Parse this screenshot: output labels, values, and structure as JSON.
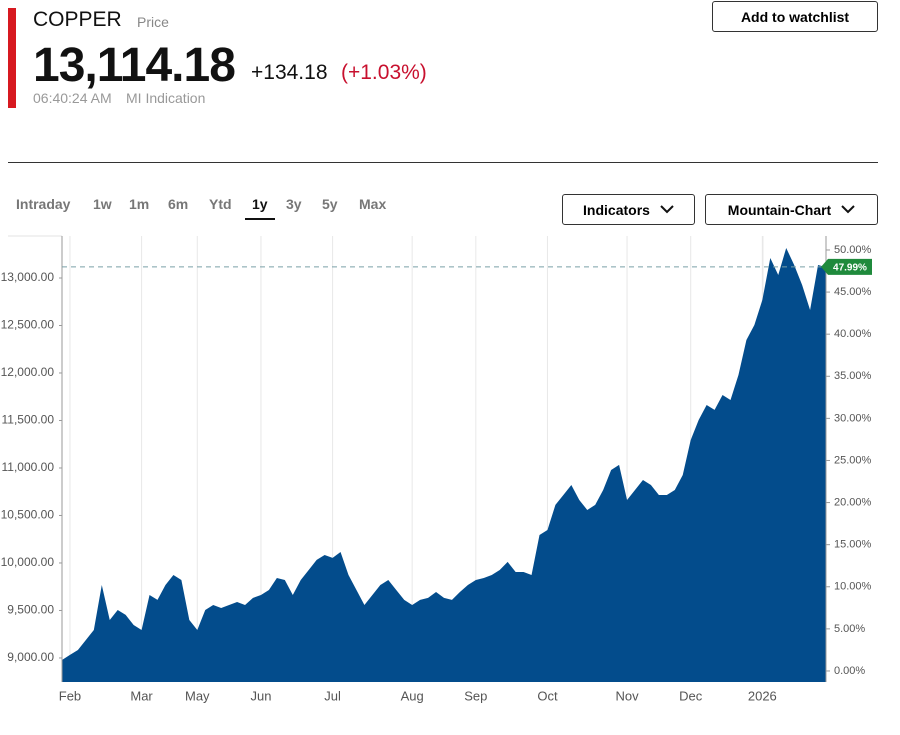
{
  "header": {
    "symbol": "COPPER",
    "kind": "Price",
    "price": "13,114.18",
    "change": "+134.18",
    "change_pct": "(+1.03%)",
    "time": "06:40:24 AM",
    "source": "MI Indication",
    "watchlist": "Add to watchlist",
    "tabs": [
      "Intraday",
      "1w",
      "1m",
      "6m",
      "Ytd",
      "1y",
      "3y",
      "5y",
      "Max"
    ],
    "indicators": "Indicators",
    "chart_style": "Mountain-Chart"
  },
  "chart_data": {
    "type": "area",
    "categories": [
      null,
      "Feb",
      null,
      null,
      null,
      null,
      null,
      null,
      null,
      null,
      "Mar",
      null,
      null,
      null,
      null,
      null,
      null,
      "May",
      null,
      null,
      null,
      null,
      null,
      null,
      null,
      "Jun",
      null,
      null,
      null,
      null,
      null,
      null,
      null,
      null,
      "Jul",
      null,
      null,
      null,
      null,
      null,
      null,
      null,
      null,
      null,
      "Aug",
      null,
      null,
      null,
      null,
      null,
      null,
      null,
      "Sep",
      null,
      null,
      null,
      null,
      null,
      null,
      null,
      null,
      "Oct",
      null,
      null,
      null,
      null,
      null,
      null,
      null,
      null,
      null,
      "Nov",
      null,
      null,
      null,
      null,
      null,
      null,
      null,
      "Dec",
      null,
      null,
      null,
      null,
      null,
      null,
      null,
      null,
      "2026",
      null,
      null,
      null,
      null,
      null,
      null,
      null,
      null
    ],
    "series": [
      {
        "color": "#034c8c",
        "values": [
          8979,
          9032,
          9084,
          9189,
          9295,
          9768,
          9400,
          9505,
          9453,
          9347,
          9295,
          9663,
          9611,
          9768,
          9874,
          9821,
          9400,
          9295,
          9505,
          9558,
          9526,
          9558,
          9589,
          9558,
          9632,
          9663,
          9716,
          9842,
          9821,
          9663,
          9821,
          9926,
          10032,
          10084,
          10053,
          10116,
          9874,
          9716,
          9558,
          9663,
          9768,
          9821,
          9716,
          9611,
          9558,
          9611,
          9632,
          9695,
          9632,
          9611,
          9695,
          9768,
          9821,
          9842,
          9874,
          9926,
          10011,
          9905,
          9905,
          9874,
          10295,
          10347,
          10611,
          10716,
          10821,
          10663,
          10558,
          10611,
          10768,
          10979,
          11032,
          10663,
          10768,
          10874,
          10821,
          10716,
          10716,
          10768,
          10926,
          11295,
          11505,
          11663,
          11611,
          11768,
          11716,
          11979,
          12347,
          12505,
          12768,
          13211,
          13032,
          13316,
          13137,
          12926,
          12663,
          13137,
          13114.18
        ]
      }
    ],
    "ylim": [
      8747,
      13442
    ],
    "yticks": [
      {
        "value": 9000,
        "label": "9,000.00"
      },
      {
        "value": 9500,
        "label": "9,500.00"
      },
      {
        "value": 10000,
        "label": "10,000.00"
      },
      {
        "value": 10500,
        "label": "10,500.00"
      },
      {
        "value": 11000,
        "label": "11,000.00"
      },
      {
        "value": 11500,
        "label": "11,500.00"
      },
      {
        "value": 12000,
        "label": "12,000.00"
      },
      {
        "value": 12500,
        "label": "12,500.00"
      },
      {
        "value": 13000,
        "label": "13,000.00"
      }
    ],
    "y2lim": [
      -1.31,
      51.66
    ],
    "y2ticks": [
      {
        "value": 0,
        "label": "0.00%"
      },
      {
        "value": 5,
        "label": "5.00%"
      },
      {
        "value": 10,
        "label": "10.00%"
      },
      {
        "value": 15,
        "label": "15.00%"
      },
      {
        "value": 20,
        "label": "20.00%"
      },
      {
        "value": 25,
        "label": "25.00%"
      },
      {
        "value": 30,
        "label": "30.00%"
      },
      {
        "value": 35,
        "label": "35.00%"
      },
      {
        "value": 40,
        "label": "40.00%"
      },
      {
        "value": 45,
        "label": "45.00%"
      },
      {
        "value": 50,
        "label": "50.00%"
      }
    ],
    "current": {
      "value": 47.99,
      "label": "47.99%",
      "axis": "y2",
      "color": "#1f8a3c"
    }
  }
}
